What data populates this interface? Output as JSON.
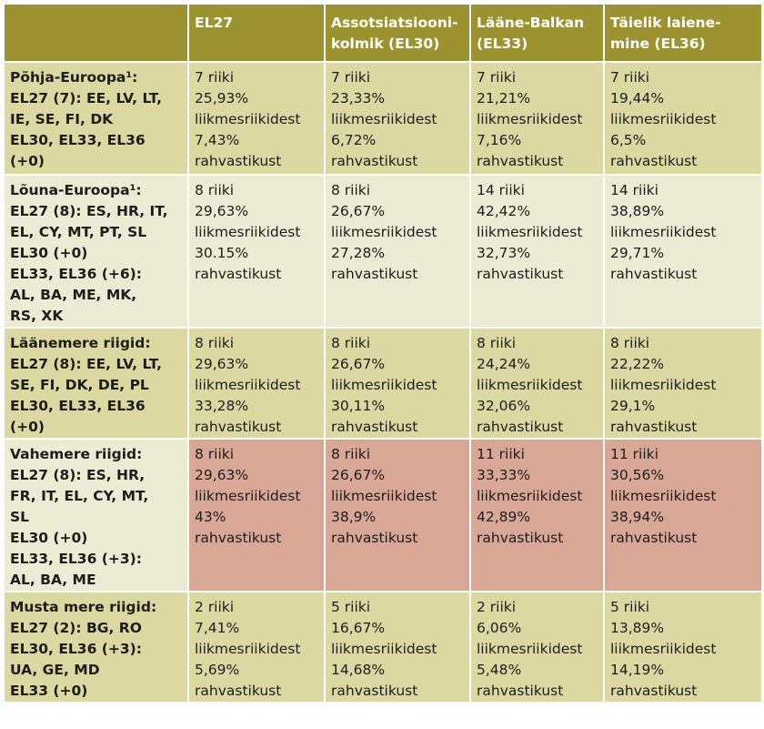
{
  "columns": [
    "",
    "EL27",
    "Assotsiatsiooni-\nkolmik (EL30)",
    "Lääne-Balkan\n(EL33)",
    "Täielik laiene-\nmine (EL36)"
  ],
  "rows": [
    {
      "label": [
        "Põhja-Euroopa¹:",
        "EL27 (7): EE, LV, LT,",
        "IE, SE, FI, DK",
        "EL30, EL33, EL36",
        "(+0)"
      ],
      "cells": [
        [
          "7 riiki",
          "25,93%",
          "liikmesriikidest",
          "7,43%",
          "rahvastikust"
        ],
        [
          "7 riiki",
          "23,33%",
          "liikmesriikidest",
          "6,72%",
          "rahvastikust"
        ],
        [
          "7 riiki",
          "21,21%",
          "liikmesriikidest",
          "7,16%",
          "rahvastikust"
        ],
        [
          "7 riiki",
          "19,44%",
          "liikmesriikidest",
          "6,5%",
          "rahvastikust"
        ]
      ]
    },
    {
      "label": [
        "Lõuna-Euroopa¹:",
        "EL27 (8): ES, HR, IT,",
        "EL, CY, MT, PT, SL",
        "EL30 (+0)",
        "EL33, EL36 (+6):",
        "AL, BA, ME, MK,",
        "RS, XK"
      ],
      "cells": [
        [
          "8 riiki",
          "29,63%",
          "liikmesriikidest",
          "30.15%",
          "rahvastikust"
        ],
        [
          "8 riiki",
          "26,67%",
          "liikmesriikidest",
          "27,28%",
          "rahvastikust"
        ],
        [
          "14 riiki",
          "42,42%",
          "liikmesriikidest",
          "32,73%",
          "rahvastikust"
        ],
        [
          "14 riiki",
          "38,89%",
          "liikmesriikidest",
          "29,71%",
          "rahvastikust"
        ]
      ]
    },
    {
      "label": [
        "Läänemere riigid:",
        "EL27 (8): EE, LV, LT,",
        "SE, FI, DK, DE, PL",
        "EL30, EL33, EL36",
        "(+0)"
      ],
      "cells": [
        [
          "8 riiki",
          "29,63%",
          "liikmesriikidest",
          "33,28%",
          "rahvastikust"
        ],
        [
          "8 riiki",
          "26,67%",
          "liikmesriikidest",
          "30,11%",
          "rahvastikust"
        ],
        [
          "8 riiki",
          "24,24%",
          "liikmesriikidest",
          "32,06%",
          "rahvastikust"
        ],
        [
          "8 riiki",
          "22,22%",
          "liikmesriikidest",
          "29,1%",
          "rahvastikust"
        ]
      ]
    },
    {
      "label": [
        "Vahemere riigid:",
        "EL27 (8): ES, HR,",
        "FR, IT, EL, CY, MT,",
        "SL",
        "EL30 (+0)",
        "EL33, EL36 (+3):",
        "AL, BA, ME"
      ],
      "cells": [
        [
          "8 riiki",
          "29,63%",
          "liikmesriikidest",
          "43%",
          "rahvastikust"
        ],
        [
          "8 riiki",
          "26,67%",
          "liikmesriikidest",
          "38,9%",
          "rahvastikust"
        ],
        [
          "11 riiki",
          "33,33%",
          "liikmesriikidest",
          "42,89%",
          "rahvastikust"
        ],
        [
          "11 riiki",
          "30,56%",
          "liikmesriikidest",
          "38,94%",
          "rahvastikust"
        ]
      ]
    },
    {
      "label": [
        "Musta mere riigid:",
        "EL27 (2): BG, RO",
        "EL30, EL36 (+3):",
        "UA, GE, MD",
        "EL33 (+0)"
      ],
      "cells": [
        [
          "2 riiki",
          "7,41%",
          "liikmesriikidest",
          "5,69%",
          "rahvastikust"
        ],
        [
          "5 riiki",
          "16,67%",
          "liikmesriikidest",
          "14,68%",
          "rahvastikust"
        ],
        [
          "2 riiki",
          "6,06%",
          "liikmesriikidest",
          "5,48%",
          "rahvastikust"
        ],
        [
          "5 riiki",
          "13,89%",
          "liikmesriikidest",
          "14,19%",
          "rahvastikust"
        ]
      ]
    }
  ],
  "colors": {
    "header": "#9c9230",
    "row_dark": "#dcd8a2",
    "row_light": "#ecebd3",
    "highlight": "#d9a795"
  }
}
